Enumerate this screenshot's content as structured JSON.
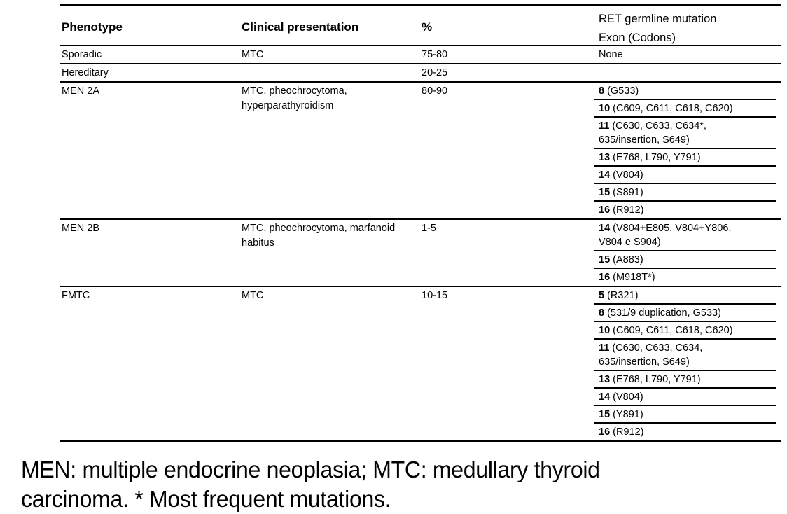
{
  "table": {
    "header": {
      "phenotype": "Phenotype",
      "clinical": "Clinical presentation",
      "percent": "%",
      "mutation_line1": "RET germline mutation",
      "mutation_line2": "Exon (Codons)"
    },
    "rows": [
      {
        "phenotype": "Sporadic",
        "clinical": "MTC",
        "percent": "75-80",
        "mutations": [
          {
            "exon": "",
            "codons": "None"
          }
        ]
      },
      {
        "phenotype": "Hereditary",
        "clinical": "",
        "percent": "20-25",
        "mutations": []
      },
      {
        "phenotype": "MEN 2A",
        "clinical": "MTC, pheochrocytoma,\nhyperparathyroidism",
        "percent": "80-90",
        "mutations": [
          {
            "exon": "8",
            "codons": "(G533)"
          },
          {
            "exon": "10",
            "codons": "(C609, C611, C618, C620)"
          },
          {
            "exon": "11",
            "codons": "(C630, C633, C634*,\n635/insertion, S649)"
          },
          {
            "exon": "13",
            "codons": "(E768, L790, Y791)"
          },
          {
            "exon": "14",
            "codons": "(V804)"
          },
          {
            "exon": "15",
            "codons": "(S891)"
          },
          {
            "exon": "16",
            "codons": "(R912)"
          }
        ]
      },
      {
        "phenotype": "MEN 2B",
        "clinical": "MTC, pheochrocytoma, marfanoid\nhabitus",
        "percent": "1-5",
        "mutations": [
          {
            "exon": "14",
            "codons": "(V804+E805, V804+Y806,\nV804 e S904)"
          },
          {
            "exon": "15",
            "codons": "(A883)"
          },
          {
            "exon": "16",
            "codons": "(M918T*)"
          }
        ]
      },
      {
        "phenotype": "FMTC",
        "clinical": "MTC",
        "percent": "10-15",
        "mutations": [
          {
            "exon": "5",
            "codons": "(R321)"
          },
          {
            "exon": "8",
            "codons": "(531/9 duplication, G533)"
          },
          {
            "exon": "10",
            "codons": "(C609, C611, C618, C620)"
          },
          {
            "exon": "11",
            "codons": "(C630, C633, C634,\n635/insertion, S649)"
          },
          {
            "exon": "13",
            "codons": "(E768, L790, Y791)"
          },
          {
            "exon": "14",
            "codons": "(V804)"
          },
          {
            "exon": "15",
            "codons": "(Y891)"
          },
          {
            "exon": "16",
            "codons": "(R912)"
          }
        ]
      }
    ]
  },
  "footnote": {
    "line1": "MEN: multiple endocrine neoplasia; MTC: medullary thyroid",
    "line2": "carcinoma. * Most frequent mutations."
  },
  "colors": {
    "text": "#000000",
    "rule": "#000000",
    "background": "#ffffff"
  }
}
